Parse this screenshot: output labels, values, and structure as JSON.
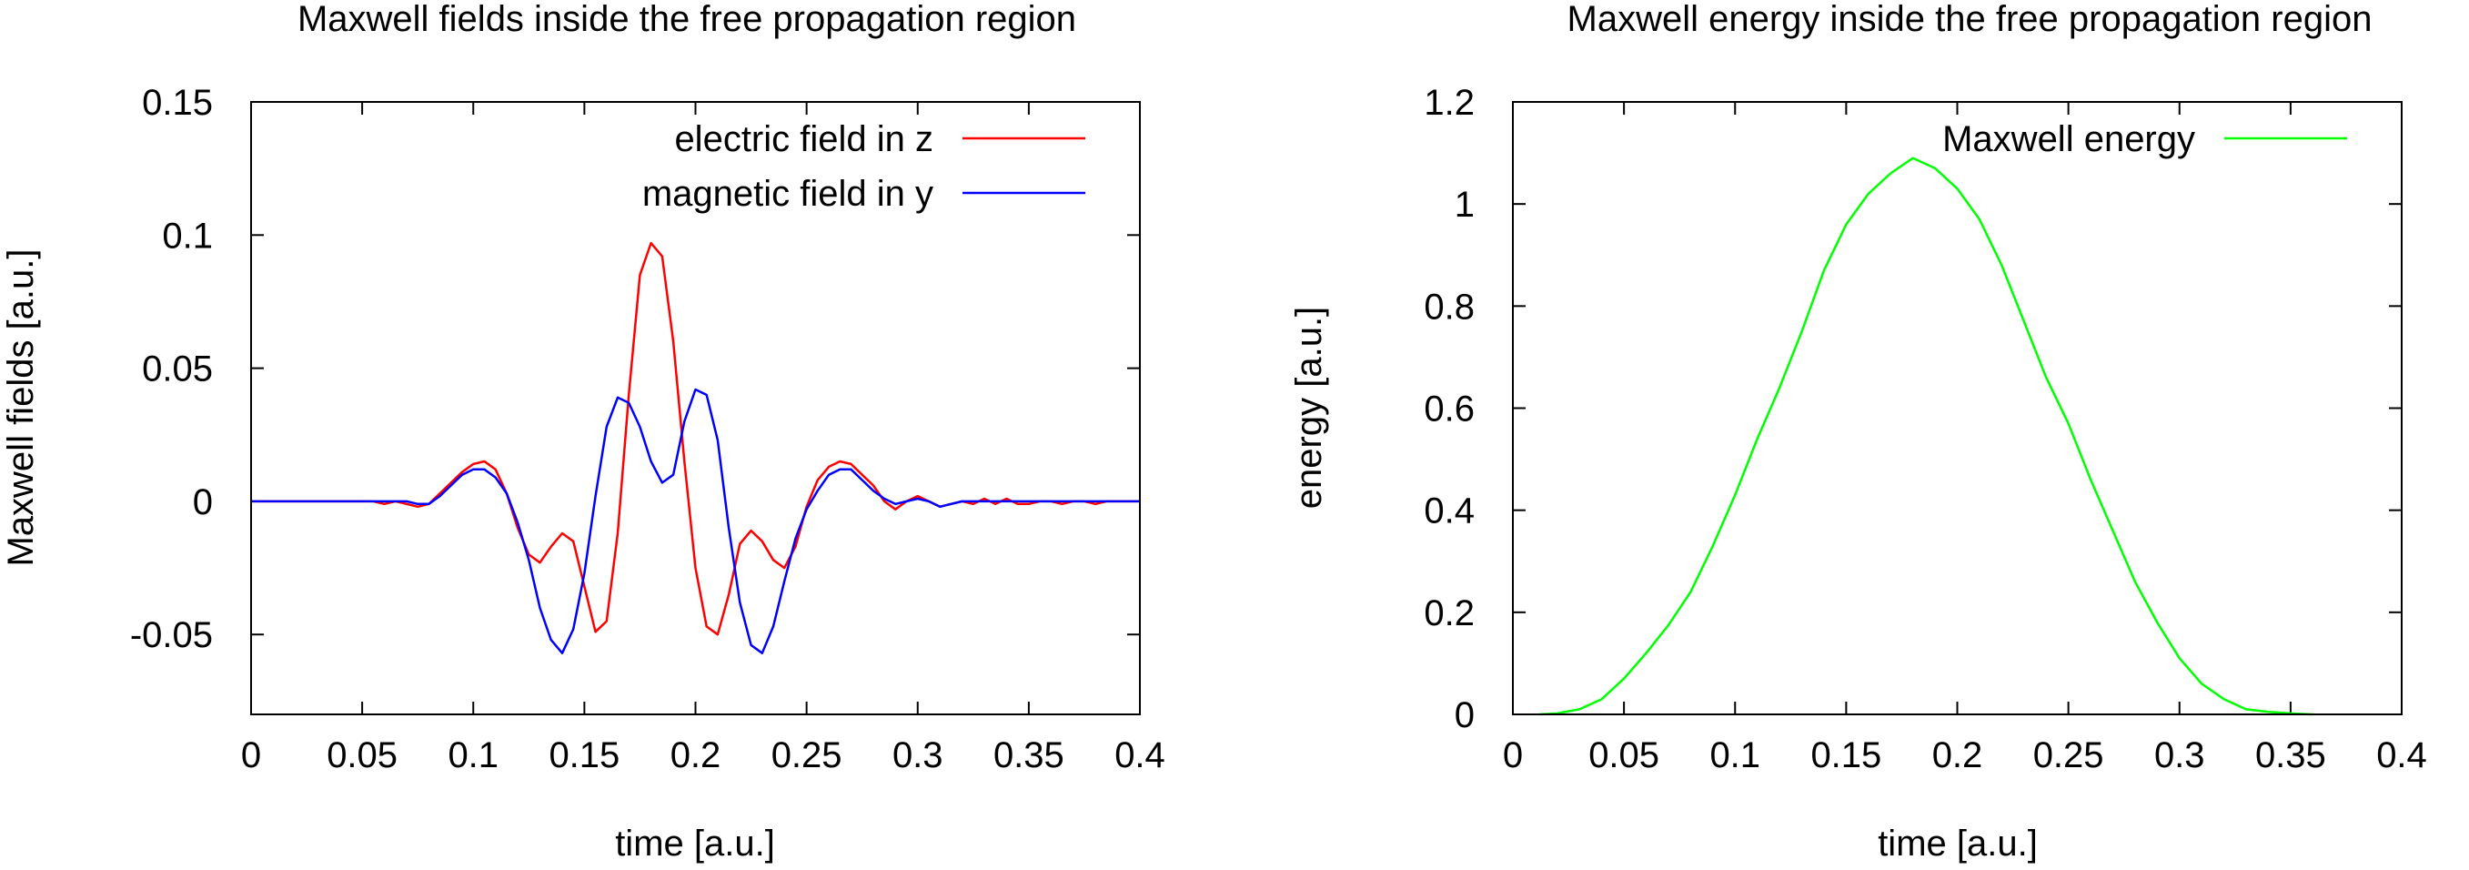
{
  "chart_data": [
    {
      "type": "line",
      "title": "Maxwell fields inside the free propagation region",
      "xlabel": "time [a.u.]",
      "ylabel": "Maxwell fields [a.u.]",
      "xlim": [
        0,
        0.4
      ],
      "ylim": [
        -0.08,
        0.15
      ],
      "xticks": [
        0,
        0.05,
        0.1,
        0.15,
        0.2,
        0.25,
        0.3,
        0.35,
        0.4
      ],
      "xtick_labels": [
        "0",
        "0.05",
        "0.1",
        "0.15",
        "0.2",
        "0.25",
        "0.3",
        "0.35",
        "0.4"
      ],
      "yticks": [
        -0.05,
        0,
        0.05,
        0.1,
        0.15
      ],
      "ytick_labels": [
        "-0.05",
        "0",
        "0.05",
        "0.1",
        "0.15"
      ],
      "grid": false,
      "legend_position": "top-right",
      "series": [
        {
          "name": "electric field in z",
          "color": "#ff0000",
          "points": [
            [
              0,
              0
            ],
            [
              0.055,
              0
            ],
            [
              0.06,
              -0.001
            ],
            [
              0.065,
              0
            ],
            [
              0.07,
              -0.001
            ],
            [
              0.075,
              -0.002
            ],
            [
              0.08,
              -0.001
            ],
            [
              0.085,
              0.003
            ],
            [
              0.09,
              0.007
            ],
            [
              0.095,
              0.011
            ],
            [
              0.1,
              0.014
            ],
            [
              0.105,
              0.015
            ],
            [
              0.11,
              0.012
            ],
            [
              0.115,
              0.003
            ],
            [
              0.12,
              -0.01
            ],
            [
              0.125,
              -0.02
            ],
            [
              0.13,
              -0.023
            ],
            [
              0.135,
              -0.017
            ],
            [
              0.14,
              -0.012
            ],
            [
              0.145,
              -0.015
            ],
            [
              0.15,
              -0.032
            ],
            [
              0.155,
              -0.049
            ],
            [
              0.16,
              -0.045
            ],
            [
              0.165,
              -0.012
            ],
            [
              0.17,
              0.04
            ],
            [
              0.175,
              0.085
            ],
            [
              0.18,
              0.097
            ],
            [
              0.185,
              0.092
            ],
            [
              0.19,
              0.06
            ],
            [
              0.195,
              0.015
            ],
            [
              0.2,
              -0.025
            ],
            [
              0.205,
              -0.047
            ],
            [
              0.21,
              -0.05
            ],
            [
              0.215,
              -0.035
            ],
            [
              0.22,
              -0.016
            ],
            [
              0.225,
              -0.011
            ],
            [
              0.23,
              -0.015
            ],
            [
              0.235,
              -0.022
            ],
            [
              0.24,
              -0.025
            ],
            [
              0.245,
              -0.017
            ],
            [
              0.25,
              -0.002
            ],
            [
              0.255,
              0.008
            ],
            [
              0.26,
              0.013
            ],
            [
              0.265,
              0.015
            ],
            [
              0.27,
              0.014
            ],
            [
              0.275,
              0.01
            ],
            [
              0.28,
              0.006
            ],
            [
              0.285,
              0
            ],
            [
              0.29,
              -0.003
            ],
            [
              0.295,
              0
            ],
            [
              0.3,
              0.002
            ],
            [
              0.305,
              0
            ],
            [
              0.31,
              -0.002
            ],
            [
              0.315,
              -0.001
            ],
            [
              0.32,
              0
            ],
            [
              0.325,
              -0.001
            ],
            [
              0.33,
              0.001
            ],
            [
              0.335,
              -0.001
            ],
            [
              0.34,
              0.001
            ],
            [
              0.345,
              -0.001
            ],
            [
              0.35,
              -0.001
            ],
            [
              0.355,
              0
            ],
            [
              0.36,
              0
            ],
            [
              0.365,
              -0.001
            ],
            [
              0.37,
              0
            ],
            [
              0.375,
              0
            ],
            [
              0.38,
              -0.001
            ],
            [
              0.385,
              0
            ],
            [
              0.39,
              0
            ],
            [
              0.395,
              0
            ],
            [
              0.4,
              0
            ]
          ]
        },
        {
          "name": "magnetic field in y",
          "color": "#0000ff",
          "points": [
            [
              0,
              0
            ],
            [
              0.06,
              0
            ],
            [
              0.07,
              0
            ],
            [
              0.075,
              -0.001
            ],
            [
              0.08,
              -0.001
            ],
            [
              0.085,
              0.002
            ],
            [
              0.09,
              0.006
            ],
            [
              0.095,
              0.01
            ],
            [
              0.1,
              0.012
            ],
            [
              0.105,
              0.012
            ],
            [
              0.11,
              0.009
            ],
            [
              0.115,
              0.003
            ],
            [
              0.12,
              -0.008
            ],
            [
              0.125,
              -0.022
            ],
            [
              0.13,
              -0.04
            ],
            [
              0.135,
              -0.052
            ],
            [
              0.14,
              -0.057
            ],
            [
              0.145,
              -0.048
            ],
            [
              0.15,
              -0.027
            ],
            [
              0.155,
              0.002
            ],
            [
              0.16,
              0.028
            ],
            [
              0.165,
              0.039
            ],
            [
              0.17,
              0.037
            ],
            [
              0.175,
              0.028
            ],
            [
              0.18,
              0.015
            ],
            [
              0.185,
              0.007
            ],
            [
              0.19,
              0.01
            ],
            [
              0.195,
              0.03
            ],
            [
              0.2,
              0.042
            ],
            [
              0.205,
              0.04
            ],
            [
              0.21,
              0.023
            ],
            [
              0.215,
              -0.01
            ],
            [
              0.22,
              -0.038
            ],
            [
              0.225,
              -0.054
            ],
            [
              0.23,
              -0.057
            ],
            [
              0.235,
              -0.047
            ],
            [
              0.24,
              -0.03
            ],
            [
              0.245,
              -0.014
            ],
            [
              0.25,
              -0.003
            ],
            [
              0.255,
              0.004
            ],
            [
              0.26,
              0.01
            ],
            [
              0.265,
              0.012
            ],
            [
              0.27,
              0.012
            ],
            [
              0.275,
              0.008
            ],
            [
              0.28,
              0.004
            ],
            [
              0.285,
              0.001
            ],
            [
              0.29,
              -0.001
            ],
            [
              0.295,
              0
            ],
            [
              0.3,
              0.001
            ],
            [
              0.305,
              0
            ],
            [
              0.31,
              -0.002
            ],
            [
              0.315,
              -0.001
            ],
            [
              0.32,
              0
            ],
            [
              0.33,
              0
            ],
            [
              0.34,
              0
            ],
            [
              0.35,
              0
            ],
            [
              0.4,
              0
            ]
          ]
        }
      ]
    },
    {
      "type": "line",
      "title": "Maxwell energy inside the free propagation region",
      "xlabel": "time [a.u.]",
      "ylabel": "energy [a.u.]",
      "xlim": [
        0,
        0.4
      ],
      "ylim": [
        0,
        1.2
      ],
      "xticks": [
        0,
        0.05,
        0.1,
        0.15,
        0.2,
        0.25,
        0.3,
        0.35,
        0.4
      ],
      "xtick_labels": [
        "0",
        "0.05",
        "0.1",
        "0.15",
        "0.2",
        "0.25",
        "0.3",
        "0.35",
        "0.4"
      ],
      "yticks": [
        0,
        0.2,
        0.4,
        0.6,
        0.8,
        1,
        1.2
      ],
      "ytick_labels": [
        "0",
        "0.2",
        "0.4",
        "0.6",
        "0.8",
        "1",
        "1.2"
      ],
      "grid": false,
      "legend_position": "top-right",
      "series": [
        {
          "name": "Maxwell energy",
          "color": "#00ff00",
          "points": [
            [
              0.012,
              0
            ],
            [
              0.02,
              0.002
            ],
            [
              0.03,
              0.01
            ],
            [
              0.04,
              0.03
            ],
            [
              0.05,
              0.07
            ],
            [
              0.06,
              0.12
            ],
            [
              0.07,
              0.175
            ],
            [
              0.08,
              0.24
            ],
            [
              0.09,
              0.33
            ],
            [
              0.1,
              0.43
            ],
            [
              0.11,
              0.54
            ],
            [
              0.12,
              0.64
            ],
            [
              0.13,
              0.75
            ],
            [
              0.14,
              0.87
            ],
            [
              0.15,
              0.96
            ],
            [
              0.16,
              1.02
            ],
            [
              0.17,
              1.06
            ],
            [
              0.18,
              1.09
            ],
            [
              0.19,
              1.07
            ],
            [
              0.2,
              1.03
            ],
            [
              0.21,
              0.97
            ],
            [
              0.22,
              0.88
            ],
            [
              0.23,
              0.77
            ],
            [
              0.24,
              0.66
            ],
            [
              0.25,
              0.57
            ],
            [
              0.26,
              0.46
            ],
            [
              0.27,
              0.36
            ],
            [
              0.28,
              0.26
            ],
            [
              0.29,
              0.18
            ],
            [
              0.3,
              0.11
            ],
            [
              0.31,
              0.06
            ],
            [
              0.32,
              0.03
            ],
            [
              0.33,
              0.01
            ],
            [
              0.34,
              0.005
            ],
            [
              0.35,
              0.002
            ],
            [
              0.36,
              0
            ]
          ]
        }
      ]
    }
  ]
}
